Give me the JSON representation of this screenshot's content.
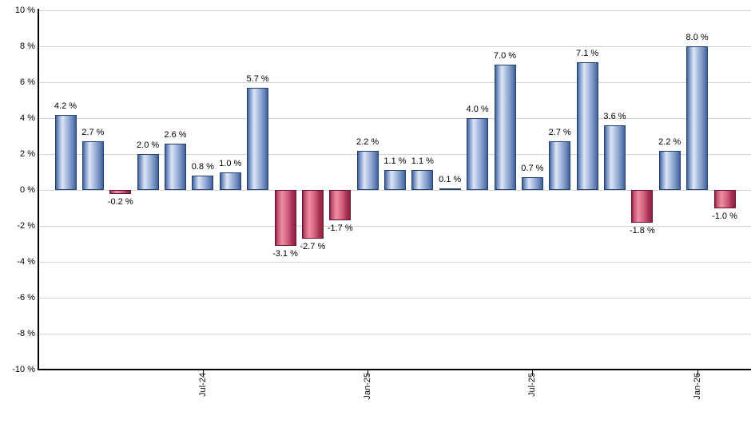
{
  "chart_data": {
    "type": "bar",
    "title": "",
    "xlabel": "",
    "ylabel": "",
    "ylim": [
      -10,
      10
    ],
    "ytick_step": 2,
    "grid": true,
    "legend": "none",
    "y_tick_labels": [
      "10 %",
      "8 %",
      "6 %",
      "4 %",
      "2 %",
      "0 %",
      "-2 %",
      "-4 %",
      "-6 %",
      "-8 %",
      "-10 %"
    ],
    "values": [
      4.2,
      2.7,
      -0.2,
      2.0,
      2.6,
      0.8,
      1.0,
      5.7,
      -3.1,
      -2.7,
      -1.7,
      2.2,
      1.1,
      1.1,
      0.1,
      4.0,
      7.0,
      0.7,
      2.7,
      7.1,
      3.6,
      -1.8,
      2.2,
      8.0,
      -1.0
    ],
    "bar_labels": [
      "4.2 %",
      "2.7 %",
      "-0.2 %",
      "2.0 %",
      "2.6 %",
      "0.8 %",
      "1.0 %",
      "5.7 %",
      "-3.1 %",
      "-2.7 %",
      "-1.7 %",
      "2.2 %",
      "1.1 %",
      "1.1 %",
      "0.1 %",
      "4.0 %",
      "7.0 %",
      "0.7 %",
      "2.7 %",
      "7.1 %",
      "3.6 %",
      "-1.8 %",
      "2.2 %",
      "8.0 %",
      "-1.0 %"
    ],
    "x_ticks": [
      {
        "index": 5,
        "label": "Jul-24"
      },
      {
        "index": 11,
        "label": "Jan-25"
      },
      {
        "index": 17,
        "label": "Jul-25"
      },
      {
        "index": 23,
        "label": "Jan-26"
      }
    ],
    "colors": {
      "positive_edge": "#3f6097",
      "positive_mid": "#7490c0",
      "positive_highlight": "#dde6f6",
      "positive_shade": "#9db3d9",
      "positive_dark": "#6e8abc",
      "positive_border": "#24416f",
      "negative_edge": "#8c2040",
      "negative_mid": "#c25472",
      "negative_highlight": "#ef8ea4",
      "negative_shade": "#d3617f",
      "negative_dark": "#a83253",
      "negative_border": "#6b1530",
      "gridline": "#d3d3d3",
      "axis": "#000000",
      "label_text": "#000000",
      "background": "#ffffff"
    }
  }
}
